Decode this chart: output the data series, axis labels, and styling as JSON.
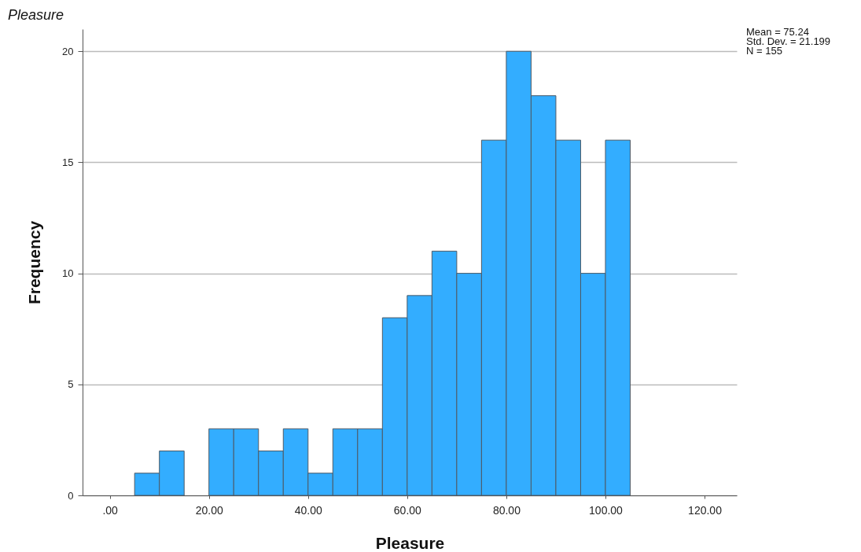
{
  "chart_data": {
    "type": "histogram",
    "title": "Pleasure",
    "xlabel": "Pleasure",
    "ylabel": "Frequency",
    "bins": [
      5,
      10,
      15,
      20,
      25,
      30,
      35,
      40,
      45,
      50,
      55,
      60,
      65,
      70,
      75,
      80,
      85,
      90,
      95,
      100,
      105
    ],
    "values": [
      1,
      2,
      0,
      3,
      3,
      2,
      3,
      1,
      3,
      3,
      8,
      9,
      11,
      10,
      16,
      20,
      18,
      16,
      10,
      16
    ],
    "color": "#33adff",
    "xlim": [
      -5.5,
      126.5
    ],
    "xticks": [
      {
        "value": 0,
        "label": ".00"
      },
      {
        "value": 20,
        "label": "20.00"
      },
      {
        "value": 40,
        "label": "40.00"
      },
      {
        "value": 60,
        "label": "60.00"
      },
      {
        "value": 80,
        "label": "80.00"
      },
      {
        "value": 100,
        "label": "100.00"
      },
      {
        "value": 120,
        "label": "120.00"
      }
    ],
    "ylim": [
      0,
      21
    ],
    "yticks": [
      0,
      5,
      10,
      15,
      20
    ],
    "grid": "y",
    "annotations": [
      "Mean = 75.24",
      "Std. Dev. = 21.199",
      "N = 155"
    ]
  }
}
